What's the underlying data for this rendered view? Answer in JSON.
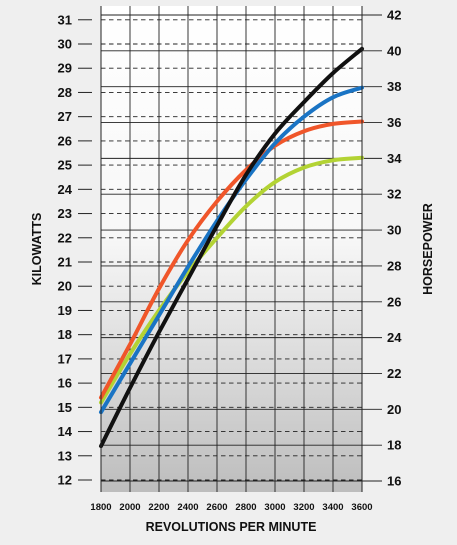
{
  "chart_data": {
    "type": "line",
    "xlabel": "REVOLUTIONS PER MINUTE",
    "ylabel_left": "KILOWATTS",
    "ylabel_right": "HORSEPOWER",
    "x_ticks": [
      1800,
      2000,
      2200,
      2400,
      2600,
      2800,
      3000,
      3200,
      3400,
      3600
    ],
    "xlim": [
      1800,
      3600
    ],
    "y_left_ticks": [
      12,
      13,
      14,
      15,
      16,
      17,
      18,
      19,
      20,
      21,
      22,
      23,
      24,
      25,
      26,
      27,
      28,
      29,
      30,
      31
    ],
    "ylim_left": [
      11.8,
      31.6
    ],
    "y_right_ticks": [
      16,
      18,
      20,
      22,
      24,
      26,
      28,
      30,
      32,
      34,
      36,
      38,
      40,
      42
    ],
    "grid": true,
    "series": [
      {
        "color": "#111111",
        "x": [
          1800,
          2000,
          2200,
          2400,
          2600,
          2800,
          3000,
          3200,
          3400,
          3600
        ],
        "values": [
          13.4,
          15.8,
          18.1,
          20.3,
          22.5,
          24.6,
          26.3,
          27.6,
          28.8,
          29.8
        ]
      },
      {
        "color": "#1a74c4",
        "x": [
          1800,
          2000,
          2200,
          2400,
          2600,
          2800,
          3000,
          3200,
          3400,
          3600
        ],
        "values": [
          14.8,
          16.8,
          18.8,
          20.8,
          22.7,
          24.4,
          25.9,
          27.0,
          27.8,
          28.2
        ]
      },
      {
        "color": "#f0562a",
        "x": [
          1800,
          2000,
          2200,
          2400,
          2600,
          2800,
          3000,
          3200,
          3400,
          3600
        ],
        "values": [
          15.4,
          17.6,
          19.9,
          21.9,
          23.5,
          24.8,
          25.8,
          26.4,
          26.7,
          26.8
        ]
      },
      {
        "color": "#b3d334",
        "x": [
          1800,
          2000,
          2200,
          2400,
          2600,
          2800,
          3000,
          3200,
          3400,
          3600
        ],
        "values": [
          15.2,
          17.2,
          19.0,
          20.6,
          22.0,
          23.3,
          24.3,
          24.9,
          25.2,
          25.3
        ]
      }
    ]
  }
}
